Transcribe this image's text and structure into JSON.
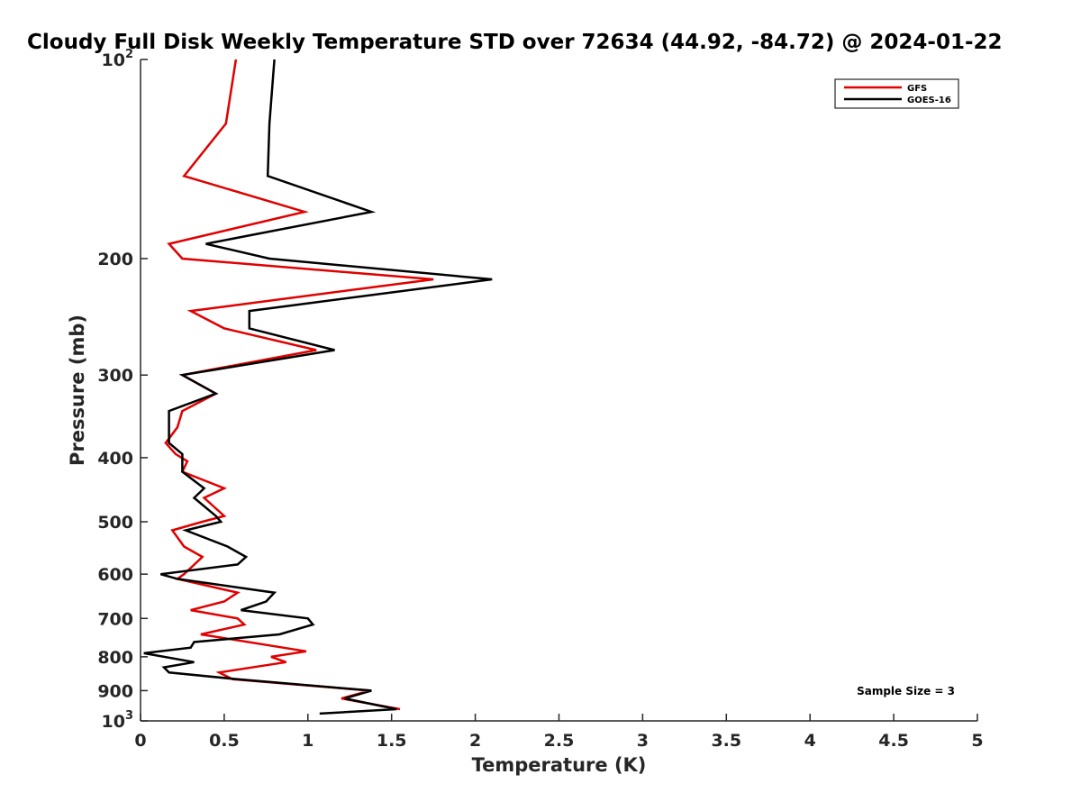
{
  "chart_data": {
    "type": "line",
    "title": "Cloudy Full Disk Weekly Temperature STD over 72634 (44.92, -84.72) @ 2024-01-22",
    "xlabel": "Temperature (K)",
    "ylabel": "Pressure (mb)",
    "xlim": [
      0,
      5
    ],
    "ylim": [
      100,
      1000
    ],
    "y_scale": "log",
    "y_direction": "reversed",
    "x_ticks": [
      "0",
      "0.5",
      "1",
      "1.5",
      "2",
      "2.5",
      "3",
      "3.5",
      "4",
      "4.5",
      "5"
    ],
    "y_ticks": [
      {
        "value": 100,
        "base": "10",
        "exp": "2"
      },
      {
        "value": 200,
        "label": "200"
      },
      {
        "value": 300,
        "label": "300"
      },
      {
        "value": 400,
        "label": "400"
      },
      {
        "value": 500,
        "label": "500"
      },
      {
        "value": 600,
        "label": "600"
      },
      {
        "value": 700,
        "label": "700"
      },
      {
        "value": 800,
        "label": "800"
      },
      {
        "value": 900,
        "label": "900"
      },
      {
        "value": 1000,
        "base": "10",
        "exp": "3"
      }
    ],
    "grid": false,
    "legend_position": "top-right",
    "annotation": "Sample Size = 3",
    "series": [
      {
        "name": "GFS",
        "color": "#e00000",
        "points": [
          [
            0.57,
            100
          ],
          [
            0.51,
            125
          ],
          [
            0.26,
            150
          ],
          [
            0.98,
            170
          ],
          [
            0.17,
            190
          ],
          [
            0.25,
            200
          ],
          [
            1.75,
            215
          ],
          [
            0.3,
            240
          ],
          [
            0.5,
            255
          ],
          [
            1.05,
            275
          ],
          [
            0.25,
            300
          ],
          [
            0.45,
            320
          ],
          [
            0.25,
            340
          ],
          [
            0.22,
            360
          ],
          [
            0.15,
            380
          ],
          [
            0.21,
            395
          ],
          [
            0.28,
            405
          ],
          [
            0.25,
            420
          ],
          [
            0.5,
            445
          ],
          [
            0.38,
            460
          ],
          [
            0.5,
            490
          ],
          [
            0.37,
            500
          ],
          [
            0.19,
            515
          ],
          [
            0.26,
            545
          ],
          [
            0.37,
            565
          ],
          [
            0.26,
            600
          ],
          [
            0.22,
            610
          ],
          [
            0.58,
            640
          ],
          [
            0.5,
            660
          ],
          [
            0.3,
            680
          ],
          [
            0.58,
            700
          ],
          [
            0.62,
            715
          ],
          [
            0.36,
            740
          ],
          [
            0.99,
            785
          ],
          [
            0.78,
            800
          ],
          [
            0.87,
            815
          ],
          [
            0.47,
            845
          ],
          [
            0.55,
            865
          ],
          [
            1.37,
            900
          ],
          [
            1.2,
            925
          ],
          [
            1.55,
            960
          ]
        ]
      },
      {
        "name": "GOES-16",
        "color": "#000000",
        "points": [
          [
            0.8,
            100
          ],
          [
            0.77,
            125
          ],
          [
            0.76,
            150
          ],
          [
            1.38,
            170
          ],
          [
            0.39,
            190
          ],
          [
            0.77,
            200
          ],
          [
            2.1,
            215
          ],
          [
            0.65,
            240
          ],
          [
            0.65,
            255
          ],
          [
            1.16,
            275
          ],
          [
            0.25,
            300
          ],
          [
            0.45,
            320
          ],
          [
            0.17,
            340
          ],
          [
            0.17,
            360
          ],
          [
            0.17,
            380
          ],
          [
            0.25,
            395
          ],
          [
            0.25,
            405
          ],
          [
            0.25,
            420
          ],
          [
            0.38,
            445
          ],
          [
            0.32,
            460
          ],
          [
            0.45,
            490
          ],
          [
            0.48,
            500
          ],
          [
            0.27,
            515
          ],
          [
            0.52,
            545
          ],
          [
            0.63,
            565
          ],
          [
            0.58,
            580
          ],
          [
            0.12,
            600
          ],
          [
            0.22,
            610
          ],
          [
            0.8,
            640
          ],
          [
            0.75,
            660
          ],
          [
            0.6,
            680
          ],
          [
            1.0,
            700
          ],
          [
            1.03,
            715
          ],
          [
            0.83,
            740
          ],
          [
            0.32,
            760
          ],
          [
            0.3,
            775
          ],
          [
            0.02,
            790
          ],
          [
            0.32,
            815
          ],
          [
            0.14,
            830
          ],
          [
            0.17,
            845
          ],
          [
            0.58,
            865
          ],
          [
            1.38,
            900
          ],
          [
            1.22,
            925
          ],
          [
            1.53,
            960
          ],
          [
            1.07,
            975
          ]
        ]
      }
    ]
  }
}
